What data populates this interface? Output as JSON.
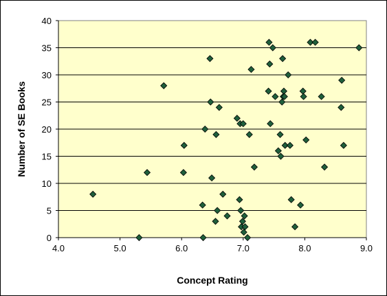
{
  "chart_data": {
    "type": "scatter",
    "title": "",
    "xlabel": "Concept Rating",
    "ylabel": "Number of SE Books",
    "xlim": [
      4.0,
      9.0
    ],
    "ylim": [
      0,
      40
    ],
    "x_ticks": [
      "4.0",
      "5.0",
      "6.0",
      "7.0",
      "8.0",
      "9.0"
    ],
    "y_ticks": [
      "0",
      "5",
      "10",
      "15",
      "20",
      "25",
      "30",
      "35",
      "40"
    ],
    "grid": "horizontal",
    "legend": "none",
    "plot_background": "#ffffcc",
    "marker_color": "#1f5f3b",
    "series": [
      {
        "points": [
          [
            4.56,
            8
          ],
          [
            5.31,
            0
          ],
          [
            5.44,
            12
          ],
          [
            5.71,
            28
          ],
          [
            6.03,
            12
          ],
          [
            6.04,
            17
          ],
          [
            6.34,
            6
          ],
          [
            6.35,
            0
          ],
          [
            6.38,
            20
          ],
          [
            6.46,
            33
          ],
          [
            6.47,
            25
          ],
          [
            6.49,
            11
          ],
          [
            6.55,
            3
          ],
          [
            6.56,
            19
          ],
          [
            6.58,
            5
          ],
          [
            6.61,
            24
          ],
          [
            6.67,
            8
          ],
          [
            6.74,
            4
          ],
          [
            6.9,
            22
          ],
          [
            6.94,
            7
          ],
          [
            6.95,
            21
          ],
          [
            6.96,
            5
          ],
          [
            6.97,
            2
          ],
          [
            6.99,
            3
          ],
          [
            7.0,
            21
          ],
          [
            7.01,
            1
          ],
          [
            7.02,
            4
          ],
          [
            7.03,
            2
          ],
          [
            7.07,
            0
          ],
          [
            7.1,
            19
          ],
          [
            7.13,
            31
          ],
          [
            7.18,
            13
          ],
          [
            7.41,
            27
          ],
          [
            7.42,
            36
          ],
          [
            7.43,
            32
          ],
          [
            7.44,
            21
          ],
          [
            7.48,
            35
          ],
          [
            7.52,
            26
          ],
          [
            7.57,
            16
          ],
          [
            7.6,
            19
          ],
          [
            7.61,
            15
          ],
          [
            7.63,
            25
          ],
          [
            7.64,
            33
          ],
          [
            7.65,
            26
          ],
          [
            7.66,
            27
          ],
          [
            7.67,
            26
          ],
          [
            7.68,
            17
          ],
          [
            7.73,
            30
          ],
          [
            7.76,
            17
          ],
          [
            7.78,
            7
          ],
          [
            7.84,
            2
          ],
          [
            7.93,
            6
          ],
          [
            7.97,
            27
          ],
          [
            7.98,
            26
          ],
          [
            8.02,
            18
          ],
          [
            8.09,
            36
          ],
          [
            8.17,
            36
          ],
          [
            8.27,
            26
          ],
          [
            8.32,
            13
          ],
          [
            8.59,
            24
          ],
          [
            8.6,
            29
          ],
          [
            8.63,
            17
          ],
          [
            8.88,
            35
          ]
        ]
      }
    ]
  }
}
